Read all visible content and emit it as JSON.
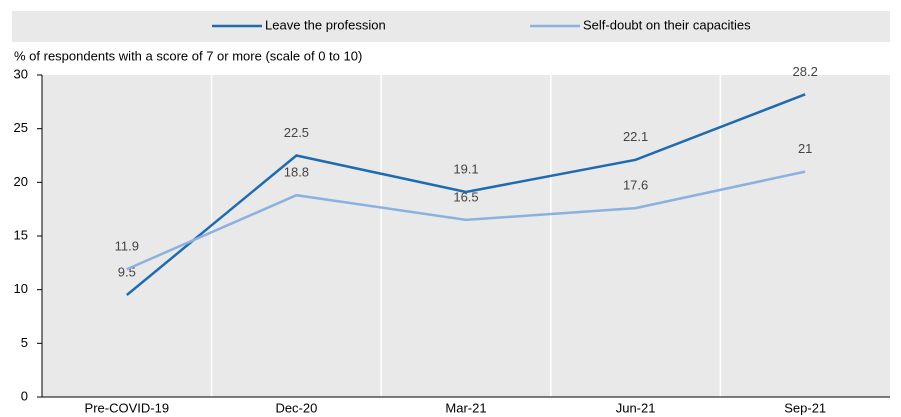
{
  "chart_data": {
    "type": "line",
    "y_axis_label": "% of respondents with a score of 7 or more (scale of 0 to 10)",
    "categories": [
      "Pre-COVID-19",
      "Dec-20",
      "Mar-21",
      "Jun-21",
      "Sep-21"
    ],
    "series": [
      {
        "name": "Leave the profession",
        "color": "#1f6bb0",
        "values": [
          9.5,
          22.5,
          19.1,
          22.1,
          28.2
        ]
      },
      {
        "name": "Self-doubt on their capacities",
        "color": "#8cb0e0",
        "values": [
          11.9,
          18.8,
          16.5,
          17.6,
          21
        ]
      }
    ],
    "ylim": [
      0,
      30
    ],
    "yticks": [
      0,
      5,
      10,
      15,
      20,
      25,
      30
    ],
    "grid": false,
    "legend": "top"
  }
}
